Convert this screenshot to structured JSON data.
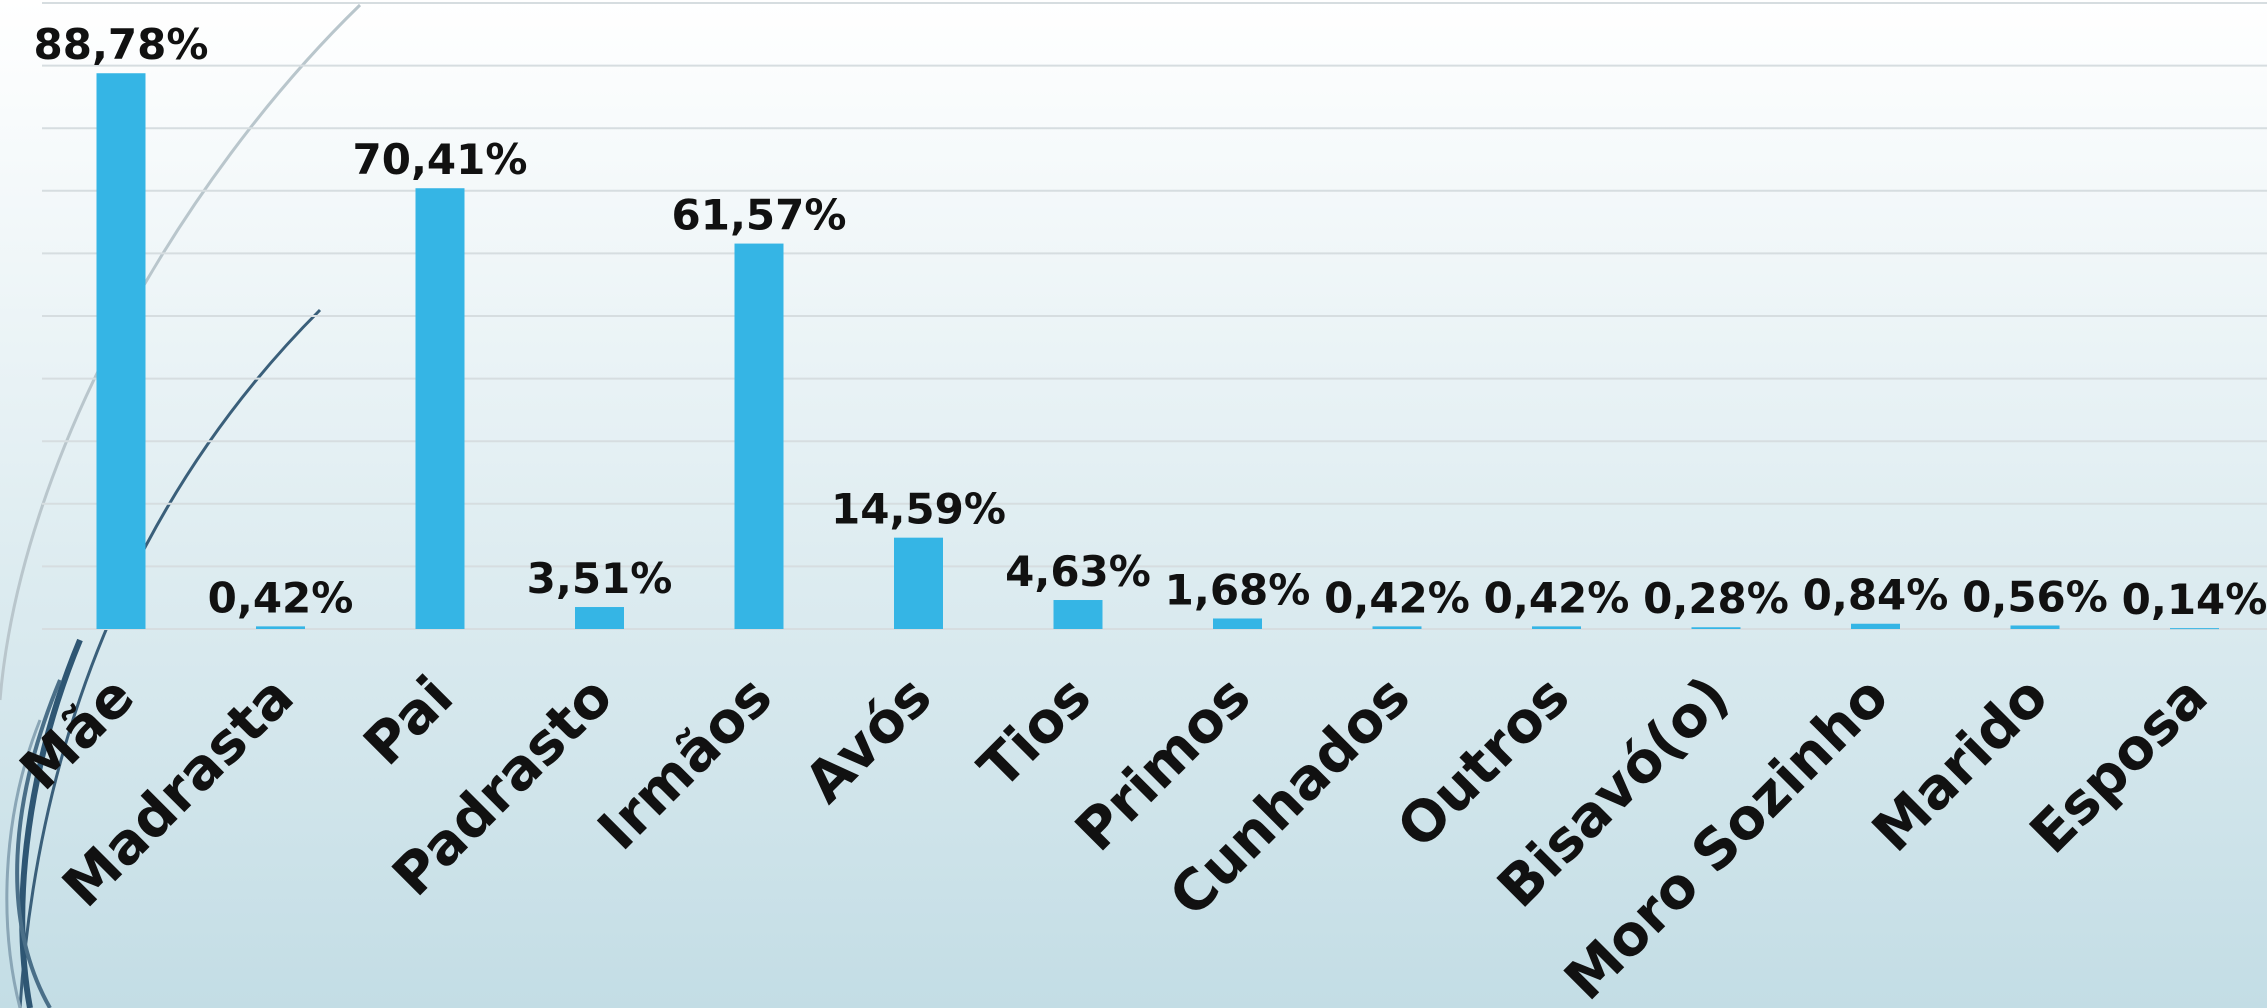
{
  "chart_data": {
    "type": "bar",
    "categories": [
      "Mãe",
      "Madrasta",
      "Pai",
      "Padrasto",
      "Irmãos",
      "Avós",
      "Tios",
      "Primos",
      "Cunhados",
      "Outros",
      "Bisavó(o)",
      "Moro Sozinho",
      "Marido",
      "Esposa"
    ],
    "values": [
      88.78,
      0.42,
      70.41,
      3.51,
      61.57,
      14.59,
      4.63,
      1.68,
      0.42,
      0.42,
      0.28,
      0.84,
      0.56,
      0.14
    ],
    "value_labels": [
      "88,78%",
      "0,42%",
      "70,41%",
      "3,51%",
      "61,57%",
      "14,59%",
      "4,63%",
      "1,68%",
      "0,42%",
      "0,42%",
      "0,28%",
      "0,84%",
      "0,56%",
      "0,14%"
    ],
    "color": "#35b5e5",
    "ylim": [
      0,
      100
    ],
    "yticks": [
      0,
      10,
      20,
      30,
      40,
      50,
      60,
      70,
      80,
      90,
      100
    ],
    "grid": true
  }
}
